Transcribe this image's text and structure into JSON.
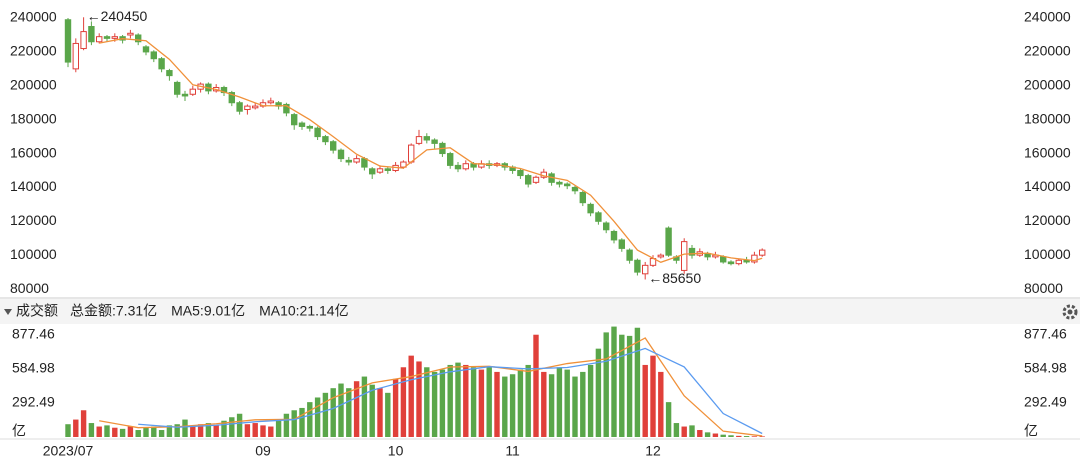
{
  "chart_data": [
    {
      "type": "candlestick",
      "up_color": "#e0403a",
      "down_color": "#5aa64a",
      "grid": false,
      "ylim": [
        75900,
        247700
      ],
      "yticks": [
        80000,
        100000,
        120000,
        140000,
        160000,
        180000,
        200000,
        220000,
        240000
      ],
      "annotations": {
        "max": "←240450",
        "min": "←85650"
      },
      "open": [
        239000,
        210000,
        222000,
        235000,
        226000,
        229000,
        228000,
        229000,
        230000,
        230000,
        223000,
        220000,
        216000,
        209000,
        202000,
        195000,
        195000,
        198000,
        201000,
        197000,
        199000,
        196000,
        190000,
        186000,
        187000,
        188000,
        190000,
        190000,
        189000,
        183000,
        178000,
        176000,
        175000,
        170000,
        167000,
        162000,
        156000,
        155000,
        157000,
        151000,
        149000,
        151000,
        150000,
        152000,
        155000,
        166000,
        170000,
        168000,
        166000,
        160000,
        153000,
        151000,
        154000,
        152000,
        154000,
        153000,
        154000,
        152000,
        150000,
        147000,
        143000,
        146000,
        148000,
        143000,
        142000,
        140000,
        137000,
        130000,
        125000,
        119000,
        114000,
        109000,
        103000,
        97000,
        89000,
        94000,
        99000,
        116000,
        99000,
        91000,
        104000,
        100000,
        101000,
        99000,
        99000,
        96000,
        95000,
        97000,
        96000,
        100000
      ],
      "high": [
        240000,
        228000,
        240450,
        238000,
        231000,
        230000,
        231000,
        230000,
        233000,
        231000,
        224000,
        221000,
        217000,
        210000,
        203000,
        197000,
        200000,
        202000,
        202000,
        201000,
        200000,
        197000,
        191000,
        189000,
        190000,
        192000,
        193000,
        191000,
        190000,
        184000,
        179000,
        177000,
        176000,
        171000,
        168000,
        163000,
        158000,
        159000,
        158000,
        152000,
        153000,
        152000,
        155000,
        156000,
        166000,
        174000,
        172000,
        169000,
        167000,
        161000,
        155000,
        156000,
        155000,
        156000,
        156000,
        155000,
        155000,
        153000,
        151000,
        148000,
        147000,
        151000,
        149000,
        144000,
        143000,
        141000,
        138000,
        131000,
        126000,
        120000,
        115000,
        110000,
        104000,
        98000,
        96000,
        100000,
        101000,
        117000,
        100000,
        110000,
        106000,
        104000,
        102000,
        102000,
        100000,
        97000,
        98000,
        99000,
        102000,
        104000
      ],
      "low": [
        211000,
        208000,
        221000,
        224000,
        225000,
        226000,
        226000,
        225000,
        228000,
        224000,
        218000,
        214000,
        208000,
        203000,
        193000,
        191000,
        194000,
        196000,
        195000,
        196000,
        194000,
        188000,
        183000,
        183000,
        186000,
        187000,
        189000,
        186000,
        182000,
        174000,
        174000,
        173000,
        168000,
        165000,
        160000,
        155000,
        153000,
        154000,
        150000,
        145000,
        148000,
        148000,
        149000,
        151000,
        154000,
        165000,
        166000,
        163000,
        158000,
        151000,
        149000,
        150000,
        150000,
        151000,
        151000,
        152000,
        150000,
        148000,
        145000,
        140000,
        142000,
        145000,
        141000,
        140000,
        139000,
        136000,
        129000,
        123000,
        118000,
        113000,
        107000,
        102000,
        95000,
        88000,
        85650,
        93000,
        98000,
        99000,
        95000,
        89000,
        98000,
        99000,
        97000,
        98000,
        95000,
        94000,
        94000,
        95000,
        95000,
        99000
      ],
      "close": [
        214000,
        225000,
        232000,
        226000,
        229000,
        228000,
        229000,
        227000,
        231000,
        226000,
        220000,
        216000,
        210000,
        206000,
        195000,
        194000,
        198000,
        201000,
        197000,
        199000,
        196000,
        190000,
        185000,
        188000,
        188000,
        190000,
        191000,
        188000,
        184000,
        177000,
        176000,
        175000,
        170000,
        167000,
        162000,
        157000,
        155000,
        157000,
        152000,
        148000,
        151000,
        150000,
        153000,
        155000,
        165000,
        170000,
        168000,
        166000,
        160000,
        153000,
        151000,
        154000,
        152000,
        154000,
        153000,
        154000,
        152000,
        150000,
        147000,
        142000,
        146000,
        149000,
        143000,
        142000,
        141000,
        138000,
        131000,
        125000,
        120000,
        115000,
        109000,
        104000,
        97000,
        90000,
        94000,
        98000,
        100000,
        100000,
        97000,
        108000,
        100000,
        102000,
        99000,
        100000,
        96000,
        95000,
        97000,
        96000,
        100000,
        103000
      ],
      "ma5": {
        "color": "#f0913a",
        "x": [
          4,
          7,
          10,
          13,
          16,
          19,
          22,
          25,
          28,
          31,
          34,
          37,
          40,
          43,
          46,
          49,
          52,
          55,
          58,
          61,
          64,
          67,
          70,
          73,
          76,
          79,
          82,
          85,
          88,
          89
        ],
        "values": [
          225200,
          227800,
          226600,
          215600,
          200600,
          197800,
          193400,
          188200,
          188200,
          180000,
          170000,
          159600,
          152600,
          151400,
          162200,
          163400,
          154000,
          153400,
          151200,
          146800,
          144200,
          135400,
          120000,
          103000,
          95800,
          100600,
          101200,
          98400,
          96800,
          98200
        ]
      },
      "xticks": [
        {
          "value": 0,
          "label": "2023/07"
        },
        {
          "value": 25,
          "label": "09"
        },
        {
          "value": 42,
          "label": "10"
        },
        {
          "value": 57,
          "label": "11"
        },
        {
          "value": 75,
          "label": "12"
        }
      ]
    },
    {
      "type": "bar",
      "title": "成交额",
      "legend": [
        {
          "text": "总金额:7.31亿",
          "color": "#5aa64a"
        },
        {
          "text": "MA5:9.01亿",
          "color": "#f0913a"
        },
        {
          "text": "MA10:21.14亿",
          "color": "#5b9bf0"
        }
      ],
      "ylim": [
        0,
        955
      ],
      "yticks": [
        {
          "value": 0,
          "label": "亿"
        },
        292.49,
        584.98,
        877.46
      ],
      "values": [
        110,
        150,
        230,
        120,
        90,
        100,
        80,
        70,
        90,
        60,
        80,
        90,
        60,
        100,
        110,
        150,
        90,
        110,
        120,
        100,
        140,
        170,
        200,
        110,
        120,
        100,
        90,
        140,
        200,
        230,
        250,
        300,
        340,
        380,
        420,
        460,
        420,
        480,
        520,
        450,
        420,
        380,
        500,
        600,
        700,
        650,
        600,
        560,
        580,
        620,
        640,
        620,
        600,
        580,
        600,
        560,
        520,
        540,
        580,
        620,
        880,
        560,
        540,
        600,
        580,
        520,
        560,
        620,
        760,
        900,
        950,
        880,
        870,
        940,
        620,
        700,
        560,
        300,
        120,
        90,
        100,
        60,
        40,
        30,
        20,
        15,
        10,
        8,
        6,
        5
      ],
      "series": [
        {
          "name": "MA5",
          "color": "#f0913a",
          "x": [
            4,
            9,
            14,
            19,
            24,
            29,
            34,
            39,
            44,
            49,
            54,
            59,
            64,
            69,
            74,
            79,
            84,
            89
          ],
          "values": [
            140,
            80,
            88,
            114,
            148,
            152,
            338,
            466,
            520,
            602,
            608,
            564,
            632,
            672,
            852,
            354,
            50,
            9
          ]
        },
        {
          "name": "MA10",
          "color": "#5b9bf0",
          "x": [
            9,
            14,
            19,
            24,
            29,
            34,
            39,
            44,
            49,
            54,
            59,
            64,
            69,
            74,
            79,
            84,
            89
          ],
          "values": [
            110,
            84,
            101,
            131,
            150,
            245,
            402,
            493,
            561,
            605,
            586,
            598,
            652,
            762,
            603,
            202,
            30
          ]
        }
      ]
    }
  ]
}
